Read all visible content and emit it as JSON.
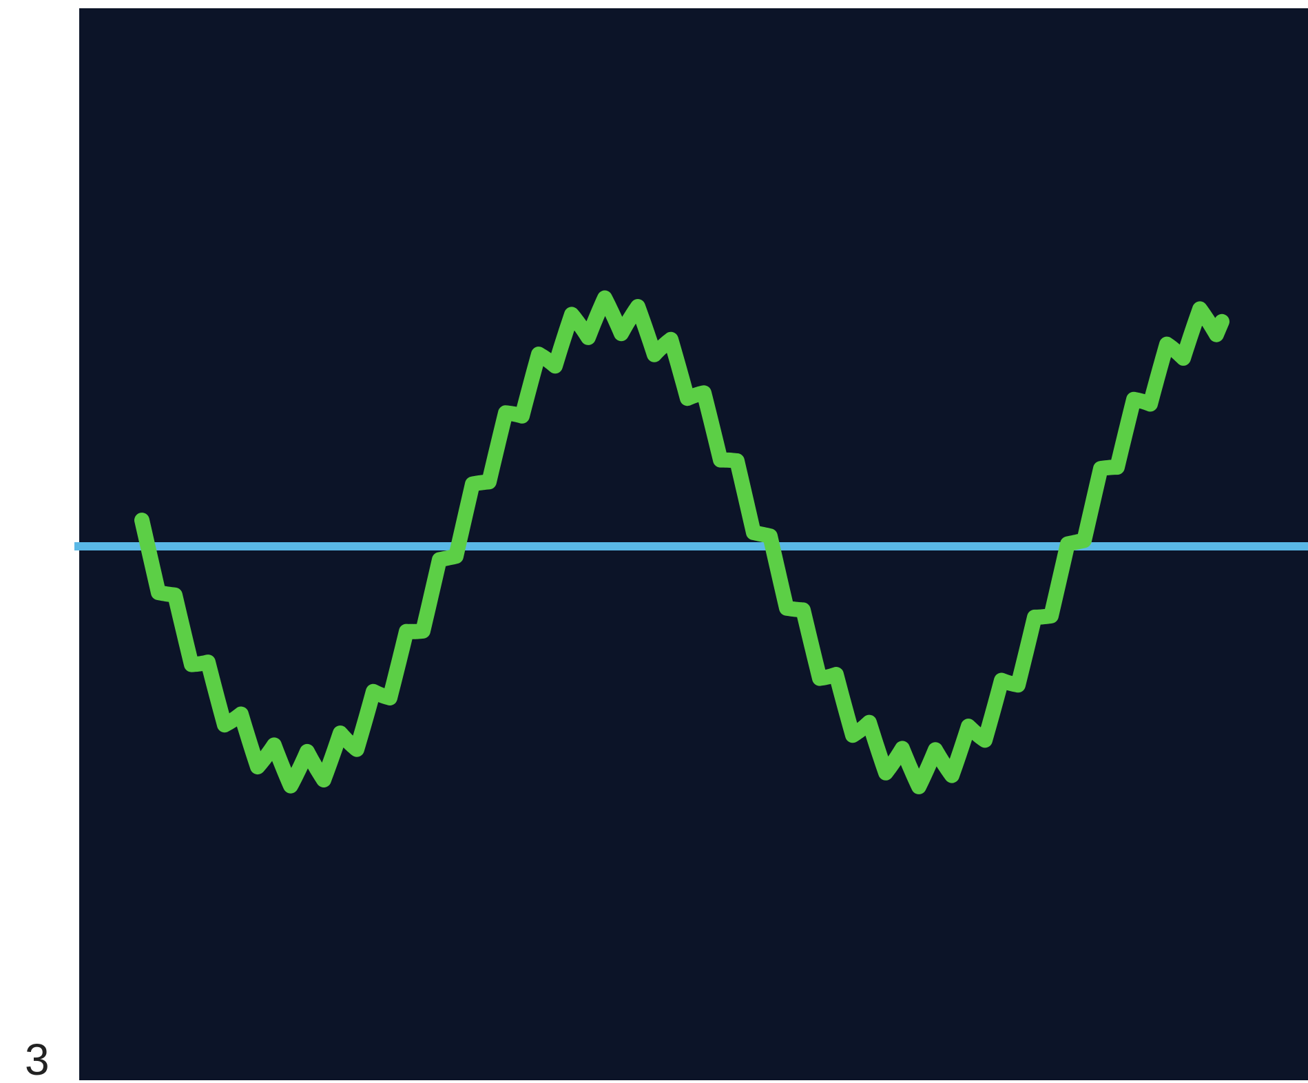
{
  "figure_label": "3"
}
